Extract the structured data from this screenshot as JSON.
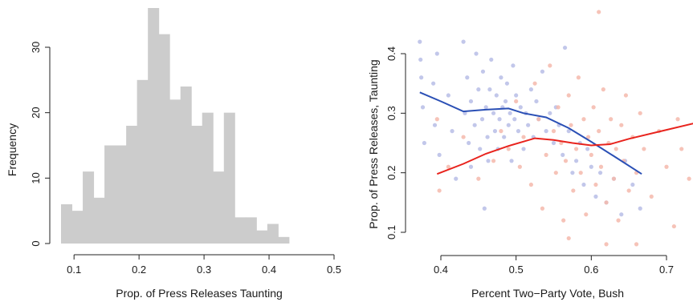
{
  "chart_data": [
    {
      "type": "bar",
      "subtype": "histogram",
      "xlabel": "Prop. of Press Releases Taunting",
      "ylabel": "Frequency",
      "bin_width": 0.0167,
      "bin_start": 0.08,
      "values": [
        6,
        5,
        11,
        7,
        15,
        15,
        18,
        25,
        36,
        32,
        22,
        24,
        18,
        20,
        11,
        20,
        4,
        4,
        2,
        3,
        1
      ],
      "xlim": [
        0.08,
        0.5
      ],
      "ylim": [
        0,
        36
      ],
      "xticks": [
        "0.1",
        "0.2",
        "0.3",
        "0.4",
        "0.5"
      ],
      "yticks": [
        "0",
        "10",
        "20",
        "30"
      ],
      "bar_color": "#cccccc"
    },
    {
      "type": "scatter",
      "xlabel": "Percent Two−Party Vote, Bush",
      "ylabel": "Prop. of Press Releases, Taunting",
      "xlim": [
        0.37,
        0.75
      ],
      "ylim": [
        0.08,
        0.42
      ],
      "xticks": [
        "0.4",
        "0.5",
        "0.6",
        "0.7"
      ],
      "yticks": [
        "0.1",
        "0.2",
        "0.3",
        "0.4"
      ],
      "series": [
        {
          "color": "#b7bde6",
          "points": [
            [
              0.372,
              0.42
            ],
            [
              0.373,
              0.39
            ],
            [
              0.374,
              0.36
            ],
            [
              0.376,
              0.31
            ],
            [
              0.378,
              0.25
            ],
            [
              0.39,
              0.35
            ],
            [
              0.392,
              0.28
            ],
            [
              0.395,
              0.4
            ],
            [
              0.398,
              0.23
            ],
            [
              0.41,
              0.33
            ],
            [
              0.415,
              0.27
            ],
            [
              0.42,
              0.19
            ],
            [
              0.43,
              0.42
            ],
            [
              0.432,
              0.3
            ],
            [
              0.435,
              0.36
            ],
            [
              0.437,
              0.25
            ],
            [
              0.44,
              0.21
            ],
            [
              0.44,
              0.32
            ],
            [
              0.445,
              0.28
            ],
            [
              0.447,
              0.4
            ],
            [
              0.45,
              0.34
            ],
            [
              0.452,
              0.24
            ],
            [
              0.455,
              0.29
            ],
            [
              0.456,
              0.37
            ],
            [
              0.458,
              0.14
            ],
            [
              0.46,
              0.31
            ],
            [
              0.462,
              0.26
            ],
            [
              0.463,
              0.22
            ],
            [
              0.465,
              0.34
            ],
            [
              0.467,
              0.39
            ],
            [
              0.47,
              0.3
            ],
            [
              0.472,
              0.27
            ],
            [
              0.474,
              0.33
            ],
            [
              0.476,
              0.24
            ],
            [
              0.478,
              0.29
            ],
            [
              0.48,
              0.36
            ],
            [
              0.482,
              0.31
            ],
            [
              0.484,
              0.26
            ],
            [
              0.486,
              0.32
            ],
            [
              0.488,
              0.35
            ],
            [
              0.49,
              0.28
            ],
            [
              0.492,
              0.3
            ],
            [
              0.494,
              0.22
            ],
            [
              0.496,
              0.38
            ],
            [
              0.498,
              0.29
            ],
            [
              0.5,
              0.33
            ],
            [
              0.503,
              0.27
            ],
            [
              0.506,
              0.31
            ],
            [
              0.51,
              0.24
            ],
            [
              0.513,
              0.3
            ],
            [
              0.516,
              0.28
            ],
            [
              0.52,
              0.34
            ],
            [
              0.523,
              0.26
            ],
            [
              0.527,
              0.32
            ],
            [
              0.53,
              0.29
            ],
            [
              0.535,
              0.37
            ],
            [
              0.54,
              0.27
            ],
            [
              0.545,
              0.3
            ],
            [
              0.55,
              0.25
            ],
            [
              0.553,
              0.31
            ],
            [
              0.557,
              0.28
            ],
            [
              0.562,
              0.23
            ],
            [
              0.565,
              0.41
            ],
            [
              0.57,
              0.27
            ],
            [
              0.575,
              0.2
            ],
            [
              0.58,
              0.22
            ],
            [
              0.585,
              0.25
            ],
            [
              0.59,
              0.18
            ],
            [
              0.595,
              0.24
            ],
            [
              0.6,
              0.21
            ],
            [
              0.606,
              0.16
            ],
            [
              0.612,
              0.2
            ],
            [
              0.62,
              0.15
            ],
            [
              0.63,
              0.19
            ],
            [
              0.64,
              0.13
            ],
            [
              0.645,
              0.22
            ],
            [
              0.655,
              0.18
            ],
            [
              0.665,
              0.14
            ]
          ]
        },
        {
          "color": "#f5b8ac",
          "points": [
            [
              0.395,
              0.29
            ],
            [
              0.398,
              0.17
            ],
            [
              0.41,
              0.21
            ],
            [
              0.43,
              0.26
            ],
            [
              0.45,
              0.19
            ],
            [
              0.47,
              0.22
            ],
            [
              0.48,
              0.27
            ],
            [
              0.49,
              0.24
            ],
            [
              0.5,
              0.32
            ],
            [
              0.505,
              0.21
            ],
            [
              0.51,
              0.26
            ],
            [
              0.52,
              0.18
            ],
            [
              0.525,
              0.35
            ],
            [
              0.53,
              0.29
            ],
            [
              0.535,
              0.14
            ],
            [
              0.54,
              0.23
            ],
            [
              0.545,
              0.38
            ],
            [
              0.55,
              0.27
            ],
            [
              0.553,
              0.2
            ],
            [
              0.556,
              0.31
            ],
            [
              0.56,
              0.25
            ],
            [
              0.563,
              0.12
            ],
            [
              0.566,
              0.22
            ],
            [
              0.57,
              0.33
            ],
            [
              0.573,
              0.28
            ],
            [
              0.576,
              0.17
            ],
            [
              0.58,
              0.24
            ],
            [
              0.583,
              0.36
            ],
            [
              0.586,
              0.2
            ],
            [
              0.59,
              0.29
            ],
            [
              0.593,
              0.13
            ],
            [
              0.596,
              0.26
            ],
            [
              0.6,
              0.23
            ],
            [
              0.603,
              0.31
            ],
            [
              0.606,
              0.18
            ],
            [
              0.61,
              0.27
            ],
            [
              0.613,
              0.21
            ],
            [
              0.616,
              0.34
            ],
            [
              0.62,
              0.15
            ],
            [
              0.623,
              0.25
            ],
            [
              0.626,
              0.29
            ],
            [
              0.63,
              0.19
            ],
            [
              0.633,
              0.24
            ],
            [
              0.636,
              0.12
            ],
            [
              0.64,
              0.28
            ],
            [
              0.643,
              0.22
            ],
            [
              0.646,
              0.33
            ],
            [
              0.65,
              0.17
            ],
            [
              0.655,
              0.26
            ],
            [
              0.66,
              0.2
            ],
            [
              0.665,
              0.3
            ],
            [
              0.67,
              0.24
            ],
            [
              0.68,
              0.16
            ],
            [
              0.69,
              0.27
            ],
            [
              0.7,
              0.21
            ],
            [
              0.71,
              0.11
            ],
            [
              0.715,
              0.29
            ],
            [
              0.72,
              0.24
            ],
            [
              0.73,
              0.19
            ],
            [
              0.74,
              0.27
            ],
            [
              0.745,
              0.16
            ],
            [
              0.748,
              0.37
            ],
            [
              0.66,
              0.08
            ],
            [
              0.62,
              0.08
            ],
            [
              0.57,
              0.09
            ],
            [
              0.61,
              0.47
            ]
          ]
        }
      ],
      "lines": [
        {
          "color": "#2a4fb5",
          "points": [
            [
              0.372,
              0.335
            ],
            [
              0.4,
              0.32
            ],
            [
              0.43,
              0.303
            ],
            [
              0.46,
              0.306
            ],
            [
              0.49,
              0.308
            ],
            [
              0.51,
              0.3
            ],
            [
              0.54,
              0.293
            ],
            [
              0.57,
              0.275
            ],
            [
              0.6,
              0.252
            ],
            [
              0.63,
              0.228
            ],
            [
              0.667,
              0.198
            ]
          ]
        },
        {
          "color": "#e8231d",
          "points": [
            [
              0.395,
              0.198
            ],
            [
              0.43,
              0.215
            ],
            [
              0.46,
              0.232
            ],
            [
              0.49,
              0.245
            ],
            [
              0.525,
              0.258
            ],
            [
              0.55,
              0.255
            ],
            [
              0.575,
              0.25
            ],
            [
              0.6,
              0.246
            ],
            [
              0.625,
              0.248
            ],
            [
              0.65,
              0.257
            ],
            [
              0.7,
              0.272
            ],
            [
              0.75,
              0.287
            ]
          ]
        }
      ]
    }
  ]
}
